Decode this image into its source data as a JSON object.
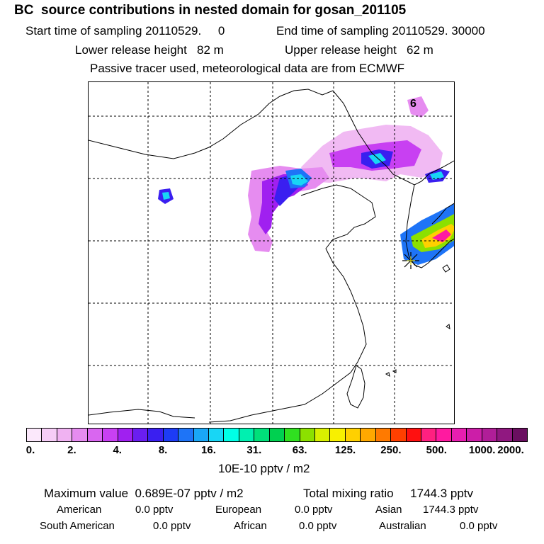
{
  "header": {
    "title": "BC  source contributions in nested domain for gosan_201105",
    "start_label": "Start time of sampling 20110529.     0",
    "end_label": "End time of sampling 20110529. 30000",
    "lower_release": "Lower release height   82 m",
    "upper_release": "Upper release height   62 m",
    "tracer_note": "Passive tracer used, meteorological data are from ECMWF"
  },
  "map": {
    "region_label": "6",
    "station_marker": "gosan-station-star-icon"
  },
  "colorbar": {
    "colors": [
      "#fbe8fb",
      "#f6cdf7",
      "#f0b2f2",
      "#e68cf0",
      "#d966f0",
      "#c840f2",
      "#a020f0",
      "#6a1ef0",
      "#3a1ff0",
      "#1d3cf5",
      "#1e74f7",
      "#1aa7f7",
      "#18d6f5",
      "#00ffe6",
      "#00f0b0",
      "#00e07a",
      "#00d050",
      "#30e020",
      "#8ce000",
      "#d8f000",
      "#f8f000",
      "#ffd000",
      "#ffa800",
      "#ff7a00",
      "#ff4000",
      "#ff1010",
      "#ff2080",
      "#ff1aa0",
      "#e81eb0",
      "#cc1ea8",
      "#b01e98",
      "#901880",
      "#6a0f60"
    ],
    "ticks": [
      "0.",
      "2.",
      "4.",
      "8.",
      "16.",
      "31.",
      "63.",
      "125.",
      "250.",
      "500.",
      "1000.",
      "2000."
    ],
    "unit": "10E-10 pptv / m2"
  },
  "summary": {
    "max_value": "Maximum value  0.689E-07 pptv / m2",
    "total_mixing": "Total mixing ratio     1744.3 pptv",
    "american_label": "American",
    "american_val": "0.0 pptv",
    "european_label": "European",
    "european_val": "0.0 pptv",
    "asian_label": "Asian",
    "asian_val": "1744.3 pptv",
    "south_american_label": "South American",
    "south_american_val": "0.0 pptv",
    "african_label": "African",
    "african_val": "0.0 pptv",
    "australian_label": "Australian",
    "australian_val": "0.0 pptv"
  }
}
